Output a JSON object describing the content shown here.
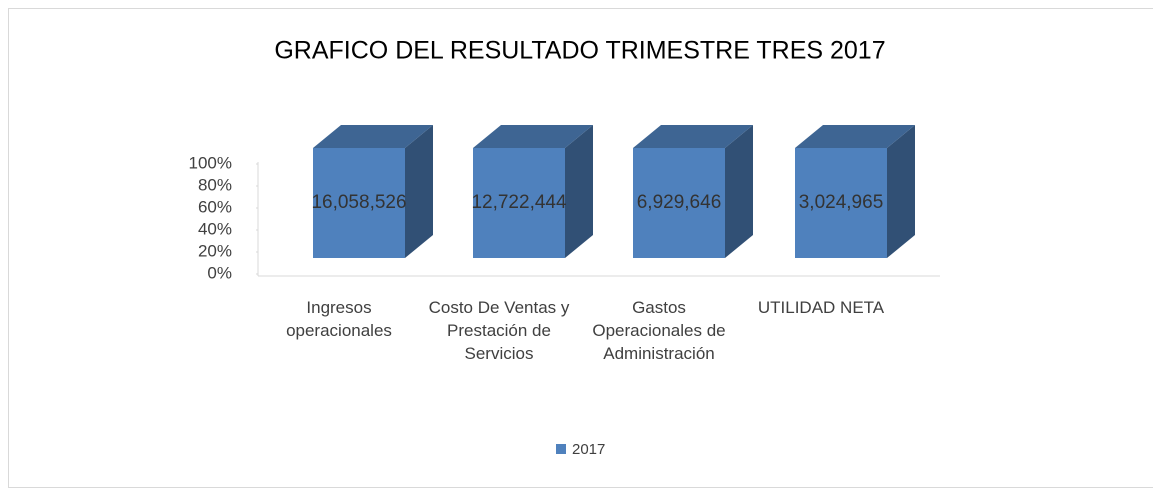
{
  "chart_data": {
    "type": "bar",
    "stacking": "percent",
    "title": "GRAFICO  DEL RESULTADO TRIMESTRE TRES 2017",
    "categories": [
      "Ingresos operacionales",
      "Costo De Ventas y Prestación de Servicios",
      "Gastos Operacionales de Administración",
      "UTILIDAD NETA"
    ],
    "series": [
      {
        "name": "2017",
        "color": "#4f81bd",
        "values": [
          16058526,
          12722444,
          6929646,
          3024965
        ],
        "value_labels": [
          "16,058,526",
          "12,722,444",
          "6,929,646",
          "3,024,965"
        ]
      }
    ],
    "ylim": [
      0,
      100
    ],
    "yticks": [
      {
        "value": 0,
        "label": "0%"
      },
      {
        "value": 20,
        "label": "20%"
      },
      {
        "value": 40,
        "label": "40%"
      },
      {
        "value": 60,
        "label": "60%"
      },
      {
        "value": 80,
        "label": "80%"
      },
      {
        "value": 100,
        "label": "100%"
      }
    ],
    "legend": "bottom"
  }
}
